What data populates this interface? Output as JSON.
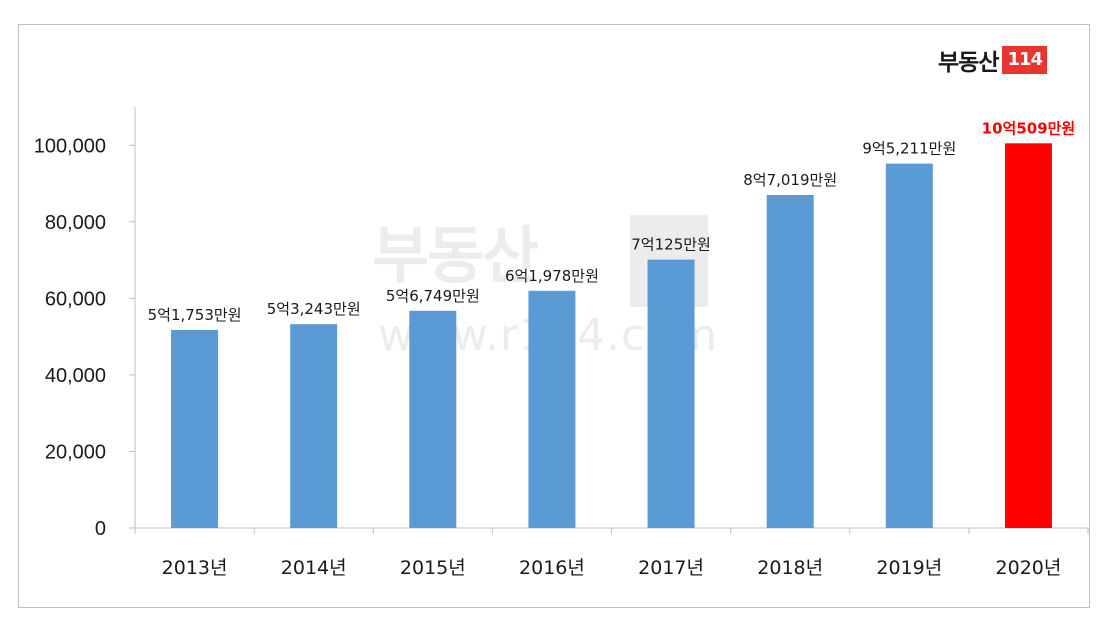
{
  "logo": {
    "text": "부동산",
    "box": "114"
  },
  "watermark": {
    "text": "부동산",
    "url": "www.r114.com"
  },
  "colors": {
    "bar": "#5b9bd5",
    "highlight_bar": "#ff0000",
    "highlight_label": "#ff0000",
    "axis": "#bfbfbf",
    "text": "#1a1a1a"
  },
  "chart_data": {
    "type": "bar",
    "categories": [
      "2013년",
      "2014년",
      "2015년",
      "2016년",
      "2017년",
      "2018년",
      "2019년",
      "2020년"
    ],
    "values": [
      51753,
      53243,
      56749,
      61978,
      70125,
      87019,
      95211,
      100509
    ],
    "data_labels": [
      "5억1,753만원",
      "5억3,243만원",
      "5억6,749만원",
      "6억1,978만원",
      "7억125만원",
      "8억7,019만원",
      "9억5,211만원",
      "10억509만원"
    ],
    "highlight_index": 7,
    "ylim": [
      0,
      110000
    ],
    "yticks": [
      0,
      20000,
      40000,
      60000,
      80000,
      100000
    ],
    "ytick_labels": [
      "0",
      "20,000",
      "40,000",
      "60,000",
      "80,000",
      "100,000"
    ],
    "grid": false,
    "title": "",
    "xlabel": "",
    "ylabel": ""
  }
}
